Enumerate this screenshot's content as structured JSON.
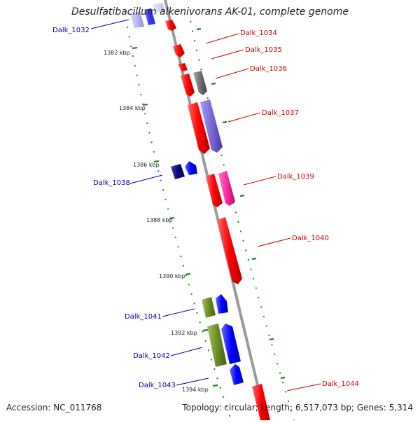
{
  "title": "Desulfatibacillum alkenivorans AK-01, complete genome",
  "footer": {
    "accession": "Accession: NC_011768",
    "summary": "Topology: circular; Length: 6,517,073 bp; Genes: 5,314"
  },
  "colors": {
    "backbone": "#999999",
    "gc_dots": "#1a8a1a",
    "label_forward": "#cc0000",
    "label_reverse": "#0000aa"
  },
  "ticks": [
    "1382 kbp",
    "1384 kbp",
    "1386 kbp",
    "1388 kbp",
    "1390 kbp",
    "1392 kbp",
    "1394 kbp"
  ],
  "gene_labels": [
    {
      "name": "Dalk_1032",
      "strand": "reverse"
    },
    {
      "name": "Dalk_1034",
      "strand": "forward"
    },
    {
      "name": "Dalk_1035",
      "strand": "forward"
    },
    {
      "name": "Dalk_1036",
      "strand": "forward"
    },
    {
      "name": "Dalk_1037",
      "strand": "forward"
    },
    {
      "name": "Dalk_1038",
      "strand": "reverse"
    },
    {
      "name": "Dalk_1039",
      "strand": "forward"
    },
    {
      "name": "Dalk_1040",
      "strand": "forward"
    },
    {
      "name": "Dalk_1041",
      "strand": "reverse"
    },
    {
      "name": "Dalk_1042",
      "strand": "reverse"
    },
    {
      "name": "Dalk_1043",
      "strand": "reverse"
    },
    {
      "name": "Dalk_1044",
      "strand": "forward"
    }
  ]
}
